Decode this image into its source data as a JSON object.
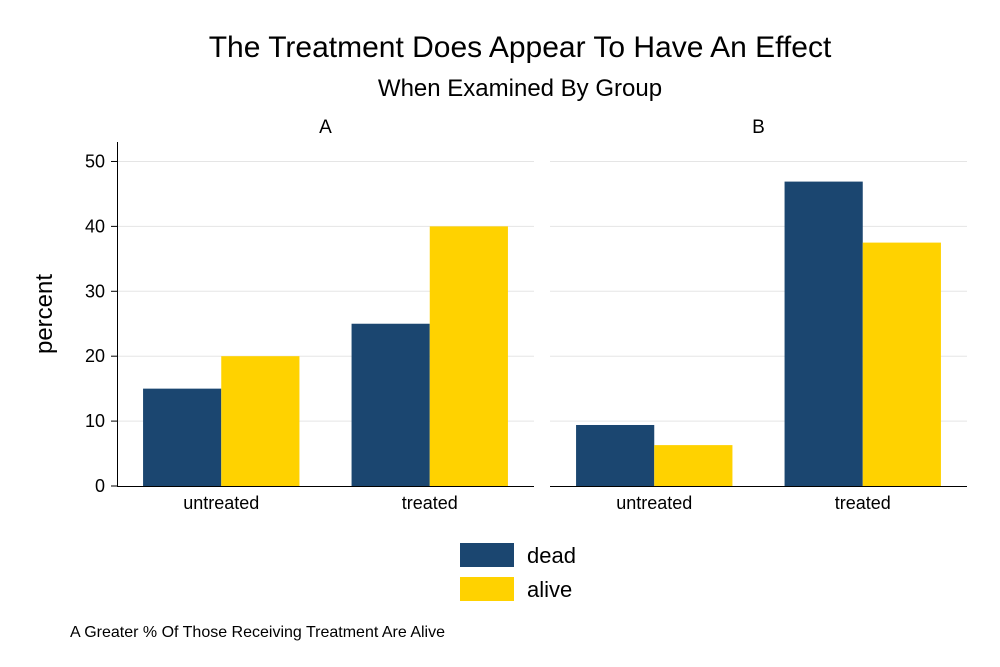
{
  "chart_data": {
    "type": "bar",
    "title": "The Treatment Does Appear To Have An Effect",
    "subtitle": "When Examined By Group",
    "ylabel": "percent",
    "ylim": [
      0,
      53
    ],
    "yticks": [
      0,
      10,
      20,
      30,
      40,
      50
    ],
    "grid": true,
    "legend": {
      "placement": "bottom",
      "entries": [
        {
          "name": "dead",
          "color": "#1b4670"
        },
        {
          "name": "alive",
          "color": "#ffd200"
        }
      ]
    },
    "note": "A Greater % Of Those Receiving Treatment Are Alive",
    "panels": [
      {
        "name": "A",
        "categories": [
          "untreated",
          "treated"
        ],
        "series": [
          {
            "name": "dead",
            "values": [
              15,
              25
            ]
          },
          {
            "name": "alive",
            "values": [
              20,
              40
            ]
          }
        ]
      },
      {
        "name": "B",
        "categories": [
          "untreated",
          "treated"
        ],
        "series": [
          {
            "name": "dead",
            "values": [
              9.4,
              46.9
            ]
          },
          {
            "name": "alive",
            "values": [
              6.3,
              37.5
            ]
          }
        ]
      }
    ]
  }
}
